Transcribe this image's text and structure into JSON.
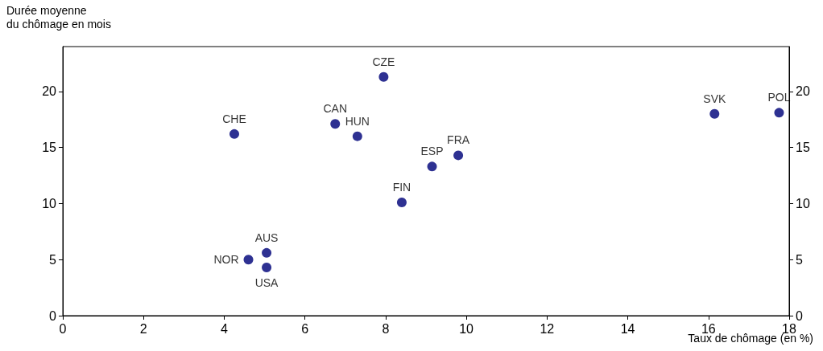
{
  "chart_data": {
    "type": "scatter",
    "ylabel": "Durée moyenne\ndu chômage en mois",
    "xlabel": "Taux de chômage (en %)",
    "x": [
      7.95,
      16.15,
      17.75,
      6.75,
      4.25,
      7.3,
      9.8,
      9.15,
      8.4,
      5.05,
      4.6,
      5.05
    ],
    "series": [
      {
        "color": "#2e3192",
        "values": [
          21.3,
          18.0,
          18.1,
          17.1,
          16.2,
          16.0,
          14.3,
          13.3,
          10.1,
          5.6,
          5.0,
          4.3
        ]
      }
    ],
    "annotations": [
      {
        "text": "CZE",
        "x": 7.95,
        "y": 21.3
      },
      {
        "text": "SVK",
        "x": 16.15,
        "y": 18.0
      },
      {
        "text": "POL",
        "x": 17.75,
        "y": 18.1
      },
      {
        "text": "CAN",
        "x": 6.75,
        "y": 17.1
      },
      {
        "text": "CHE",
        "x": 4.25,
        "y": 16.2
      },
      {
        "text": "HUN",
        "x": 7.3,
        "y": 16.0
      },
      {
        "text": "FRA",
        "x": 9.8,
        "y": 14.3
      },
      {
        "text": "ESP",
        "x": 9.15,
        "y": 13.3
      },
      {
        "text": "FIN",
        "x": 8.4,
        "y": 10.1
      },
      {
        "text": "AUS",
        "x": 5.05,
        "y": 5.6
      },
      {
        "text": "NOR",
        "x": 4.6,
        "y": 5.0
      },
      {
        "text": "USA",
        "x": 5.05,
        "y": 4.3
      }
    ],
    "xlim": [
      0,
      18
    ],
    "xticks": [
      0,
      2,
      4,
      6,
      8,
      10,
      12,
      14,
      16,
      18
    ],
    "ylim": [
      0,
      24
    ],
    "yticks": [
      0,
      5,
      10,
      15,
      20
    ],
    "y2lim": [
      0,
      24
    ],
    "y2ticks": [
      0,
      5,
      10,
      15,
      20
    ],
    "marker": "circle",
    "grid": false
  }
}
